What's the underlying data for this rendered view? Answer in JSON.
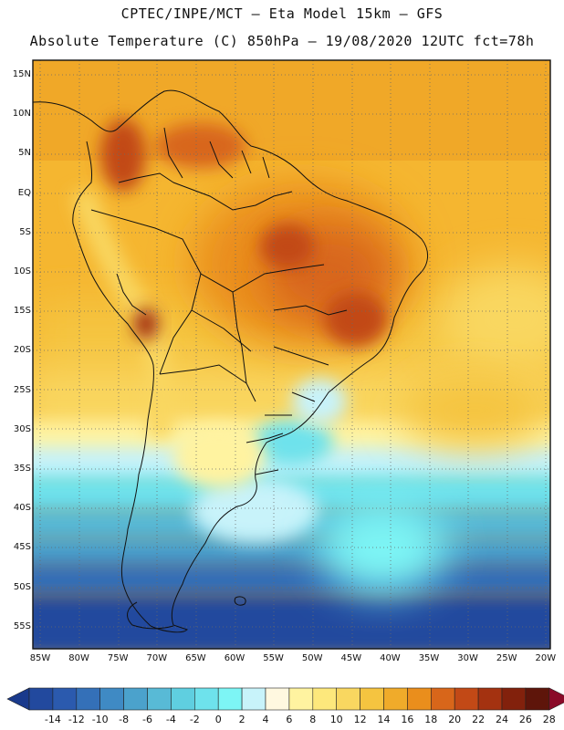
{
  "header": {
    "line1": "CPTEC/INPE/MCT –  Eta Model 15km – GFS",
    "line2": "Absolute Temperature (C) 850hPa – 19/08/2020 12UTC fct=78h"
  },
  "map": {
    "lat_labels": [
      "15N",
      "10N",
      "5N",
      "EQ",
      "5S",
      "10S",
      "15S",
      "20S",
      "25S",
      "30S",
      "35S",
      "40S",
      "45S",
      "50S",
      "55S"
    ],
    "lon_labels": [
      "85W",
      "80W",
      "75W",
      "70W",
      "65W",
      "60W",
      "55W",
      "50W",
      "45W",
      "40W",
      "35W",
      "30W",
      "25W",
      "20W"
    ]
  },
  "colorbar": {
    "labels": [
      "-14",
      "-12",
      "-10",
      "-8",
      "-6",
      "-4",
      "-2",
      "0",
      "2",
      "4",
      "6",
      "8",
      "10",
      "12",
      "14",
      "16",
      "18",
      "20",
      "22",
      "24",
      "26",
      "28"
    ],
    "colors": [
      "#1a3a8c",
      "#22499e",
      "#2b5aae",
      "#3470b8",
      "#3f8ac4",
      "#4ba2cc",
      "#58bad6",
      "#5fcfe0",
      "#6ee2ec",
      "#7df5f5",
      "#c8f3fa",
      "#fff8e0",
      "#fff3a0",
      "#fde87c",
      "#f9d760",
      "#f5c440",
      "#f0ab2a",
      "#ea8e1c",
      "#d8661a",
      "#c24916",
      "#a43210",
      "#82210c",
      "#5e150a",
      "#8a0a28"
    ]
  }
}
